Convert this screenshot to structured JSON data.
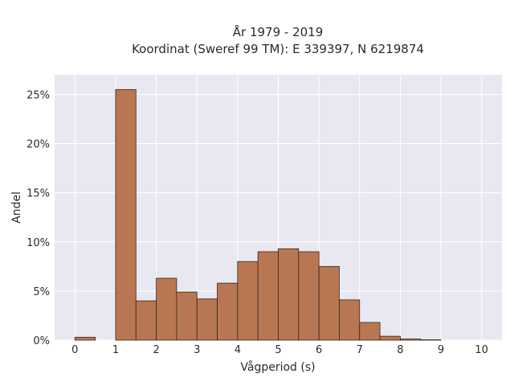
{
  "chart_data": {
    "type": "bar",
    "title_line1": "År 1979 - 2019",
    "title_line2": "Koordinat (Sweref 99 TM): E 339397, N 6219874",
    "xlabel": "Vågperiod (s)",
    "ylabel": "Andel",
    "xlim": [
      -0.5,
      10.5
    ],
    "ylim": [
      0,
      0.27
    ],
    "x_ticks": [
      0,
      1,
      2,
      3,
      4,
      5,
      6,
      7,
      8,
      9,
      10
    ],
    "x_tick_labels": [
      "0",
      "1",
      "2",
      "3",
      "4",
      "5",
      "6",
      "7",
      "8",
      "9",
      "10"
    ],
    "y_ticks": [
      0,
      0.05,
      0.1,
      0.15,
      0.2,
      0.25
    ],
    "y_tick_labels": [
      "0%",
      "5%",
      "10%",
      "15%",
      "20%",
      "25%"
    ],
    "bin_width": 0.5,
    "bins": [
      {
        "x0": 0.0,
        "value": 0.003
      },
      {
        "x0": 1.0,
        "value": 0.255
      },
      {
        "x0": 1.5,
        "value": 0.04
      },
      {
        "x0": 2.0,
        "value": 0.063
      },
      {
        "x0": 2.5,
        "value": 0.049
      },
      {
        "x0": 3.0,
        "value": 0.042
      },
      {
        "x0": 3.5,
        "value": 0.058
      },
      {
        "x0": 4.0,
        "value": 0.08
      },
      {
        "x0": 4.5,
        "value": 0.09
      },
      {
        "x0": 5.0,
        "value": 0.093
      },
      {
        "x0": 5.5,
        "value": 0.09
      },
      {
        "x0": 6.0,
        "value": 0.075
      },
      {
        "x0": 6.5,
        "value": 0.041
      },
      {
        "x0": 7.0,
        "value": 0.018
      },
      {
        "x0": 7.5,
        "value": 0.004
      },
      {
        "x0": 8.0,
        "value": 0.0012
      },
      {
        "x0": 8.5,
        "value": 0.0004
      }
    ],
    "bar_color": "#b87752",
    "bar_edge_color": "#3a2418",
    "plot_background": "#e8e8f1",
    "grid": true
  }
}
